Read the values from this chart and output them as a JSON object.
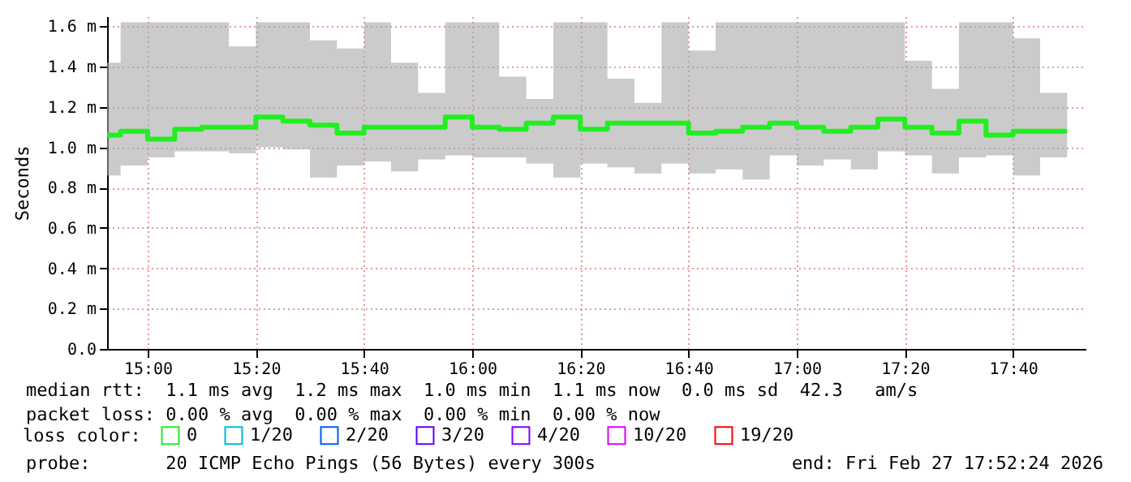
{
  "chart_data": {
    "type": "step",
    "ylabel": "Seconds",
    "legend_title": "loss color:",
    "legend": "bottom left",
    "grid": true,
    "marker": "none",
    "line_style": "solid",
    "x": [
      14.875,
      14.9167,
      15,
      15.0833,
      15.1667,
      15.25,
      15.3333,
      15.4167,
      15.5,
      15.5833,
      15.6667,
      15.75,
      15.8333,
      15.9167,
      16,
      16.0833,
      16.1667,
      16.25,
      16.3333,
      16.4167,
      16.5,
      16.5833,
      16.6667,
      16.75,
      16.8333,
      16.9167,
      17,
      17.0833,
      17.1667,
      17.25,
      17.3333,
      17.4167,
      17.5,
      17.5833,
      17.6667,
      17.75,
      17.8333
    ],
    "xlim": [
      14.875,
      17.89
    ],
    "xticks": [
      {
        "value": 15,
        "label": "15:00"
      },
      {
        "value": 15.3333,
        "label": "15:20"
      },
      {
        "value": 15.6667,
        "label": "15:40"
      },
      {
        "value": 16,
        "label": "16:00"
      },
      {
        "value": 16.3333,
        "label": "16:20"
      },
      {
        "value": 16.6667,
        "label": "16:40"
      },
      {
        "value": 17,
        "label": "17:00"
      },
      {
        "value": 17.3333,
        "label": "17:20"
      },
      {
        "value": 17.6667,
        "label": "17:40"
      }
    ],
    "ylim": [
      0,
      1.65
    ],
    "yticks": [
      {
        "value": 0,
        "label": "0.0"
      },
      {
        "value": 0.2,
        "label": "0.2 m"
      },
      {
        "value": 0.4,
        "label": "0.4 m"
      },
      {
        "value": 0.6,
        "label": "0.6 m"
      },
      {
        "value": 0.8,
        "label": "0.8 m"
      },
      {
        "value": 1.0,
        "label": "1.0 m"
      },
      {
        "value": 1.2,
        "label": "1.2 m"
      },
      {
        "value": 1.4,
        "label": "1.4 m"
      },
      {
        "value": 1.6,
        "label": "1.6 m"
      }
    ],
    "series": [
      {
        "name": "0",
        "color": "#22ee22",
        "values": [
          1.06,
          1.08,
          1.04,
          1.09,
          1.1,
          1.1,
          1.15,
          1.13,
          1.11,
          1.07,
          1.1,
          1.1,
          1.1,
          1.15,
          1.1,
          1.09,
          1.12,
          1.15,
          1.09,
          1.12,
          1.12,
          1.12,
          1.07,
          1.08,
          1.1,
          1.12,
          1.1,
          1.08,
          1.1,
          1.14,
          1.1,
          1.07,
          1.13,
          1.06,
          1.08,
          1.08,
          1.08
        ],
        "lower": [
          0.86,
          0.91,
          0.95,
          0.98,
          0.98,
          0.97,
          1.0,
          0.99,
          0.85,
          0.91,
          0.93,
          0.88,
          0.94,
          0.96,
          0.95,
          0.95,
          0.92,
          0.85,
          0.92,
          0.9,
          0.87,
          0.92,
          0.87,
          0.89,
          0.84,
          0.96,
          0.91,
          0.94,
          0.89,
          0.98,
          0.96,
          0.87,
          0.95,
          0.96,
          0.86,
          0.95,
          0.95
        ],
        "upper": [
          1.42,
          1.62,
          1.62,
          1.62,
          1.62,
          1.5,
          1.62,
          1.62,
          1.53,
          1.49,
          1.62,
          1.42,
          1.27,
          1.62,
          1.62,
          1.35,
          1.24,
          1.62,
          1.62,
          1.34,
          1.22,
          1.62,
          1.48,
          1.62,
          1.62,
          1.62,
          1.62,
          1.62,
          1.62,
          1.62,
          1.43,
          1.29,
          1.62,
          1.62,
          1.54,
          1.27,
          1.27
        ]
      },
      {
        "name": "1/20",
        "color": "#00b8e4",
        "values": [
          null,
          null,
          null,
          null,
          null,
          null,
          null,
          null,
          null,
          null,
          null,
          null,
          null,
          null,
          null,
          null,
          null,
          null,
          null,
          null,
          null,
          null,
          null,
          null,
          null,
          null,
          null,
          null,
          null,
          null,
          null,
          null,
          null,
          null,
          null,
          null,
          null
        ]
      },
      {
        "name": "2/20",
        "color": "#0059ff",
        "values": [
          null,
          null,
          null,
          null,
          null,
          null,
          null,
          null,
          null,
          null,
          null,
          null,
          null,
          null,
          null,
          null,
          null,
          null,
          null,
          null,
          null,
          null,
          null,
          null,
          null,
          null,
          null,
          null,
          null,
          null,
          null,
          null,
          null,
          null,
          null,
          null,
          null
        ]
      },
      {
        "name": "3/20",
        "color": "#5e00ff",
        "values": [
          null,
          null,
          null,
          null,
          null,
          null,
          null,
          null,
          null,
          null,
          null,
          null,
          null,
          null,
          null,
          null,
          null,
          null,
          null,
          null,
          null,
          null,
          null,
          null,
          null,
          null,
          null,
          null,
          null,
          null,
          null,
          null,
          null,
          null,
          null,
          null,
          null
        ]
      },
      {
        "name": "4/20",
        "color": "#7e00ff",
        "values": [
          null,
          null,
          null,
          null,
          null,
          null,
          null,
          null,
          null,
          null,
          null,
          null,
          null,
          null,
          null,
          null,
          null,
          null,
          null,
          null,
          null,
          null,
          null,
          null,
          null,
          null,
          null,
          null,
          null,
          null,
          null,
          null,
          null,
          null,
          null,
          null,
          null
        ]
      },
      {
        "name": "10/20",
        "color": "#dd00ff",
        "values": [
          null,
          null,
          null,
          null,
          null,
          null,
          null,
          null,
          null,
          null,
          null,
          null,
          null,
          null,
          null,
          null,
          null,
          null,
          null,
          null,
          null,
          null,
          null,
          null,
          null,
          null,
          null,
          null,
          null,
          null,
          null,
          null,
          null,
          null,
          null,
          null,
          null
        ]
      },
      {
        "name": "19/20",
        "color": "#ff0000",
        "values": [
          null,
          null,
          null,
          null,
          null,
          null,
          null,
          null,
          null,
          null,
          null,
          null,
          null,
          null,
          null,
          null,
          null,
          null,
          null,
          null,
          null,
          null,
          null,
          null,
          null,
          null,
          null,
          null,
          null,
          null,
          null,
          null,
          null,
          null,
          null,
          null,
          null
        ]
      }
    ],
    "annotations": [
      "median rtt:  1.1 ms avg  1.2 ms max  1.0 ms min  1.1 ms now  0.0 ms sd  42.3   am/s",
      "packet loss: 0.00 % avg  0.00 % max  0.00 % min  0.00 % now",
      "probe:       20 ICMP Echo Pings (56 Bytes) every 300s",
      "end: Fri Feb 27 17:52:24 2026"
    ]
  }
}
